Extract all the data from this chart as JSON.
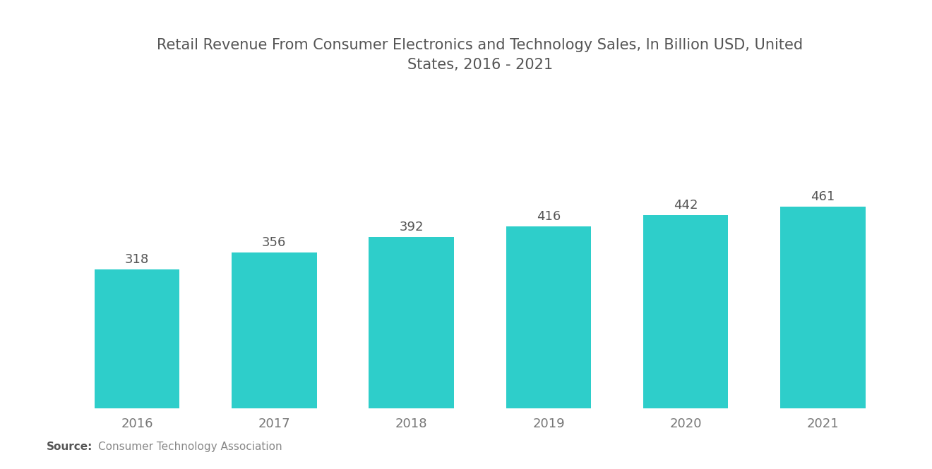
{
  "title": "Retail Revenue From Consumer Electronics and Technology Sales, In Billion USD, United\nStates, 2016 - 2021",
  "categories": [
    "2016",
    "2017",
    "2018",
    "2019",
    "2020",
    "2021"
  ],
  "values": [
    318,
    356,
    392,
    416,
    442,
    461
  ],
  "bar_color": "#2ECECA",
  "background_color": "#ffffff",
  "title_fontsize": 15,
  "label_fontsize": 13,
  "value_fontsize": 13,
  "source_bold": "Source:",
  "source_text": "Consumer Technology Association",
  "ylim": [
    0,
    720
  ],
  "bar_width": 0.62
}
